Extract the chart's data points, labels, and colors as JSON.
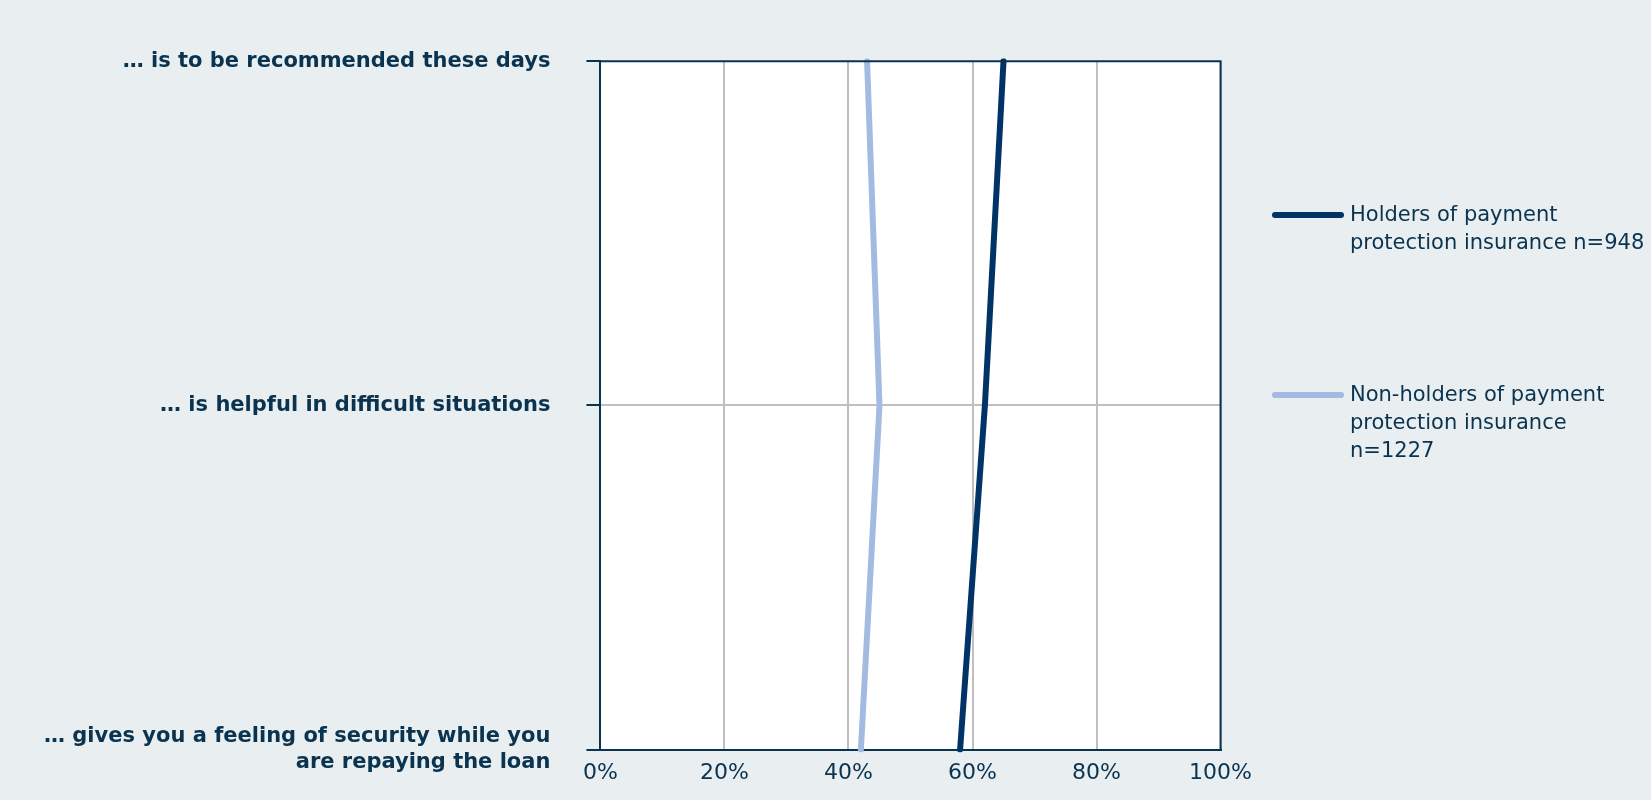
{
  "chart_data": {
    "type": "line",
    "orientation": "horizontal",
    "categories": [
      "… is to be recommended these days",
      "… is helpful in difficult situations",
      "… gives you a feeling of security while you are repaying the loan"
    ],
    "series": [
      {
        "name": "Holders of payment protection insurance n=948",
        "color": "#003366",
        "values": [
          65,
          62,
          58
        ]
      },
      {
        "name": "Non-holders of payment protection insurance n=1227",
        "color": "#a3bbe0",
        "values": [
          43,
          45,
          42
        ]
      }
    ],
    "xlim": [
      0,
      100
    ],
    "xticks": [
      {
        "value": 0,
        "label": "0%"
      },
      {
        "value": 20,
        "label": "20%"
      },
      {
        "value": 40,
        "label": "40%"
      },
      {
        "value": 60,
        "label": "60%"
      },
      {
        "value": 80,
        "label": "80%"
      },
      {
        "value": 100,
        "label": "100%"
      }
    ],
    "grid": true,
    "legend": "right",
    "marker": "none"
  }
}
